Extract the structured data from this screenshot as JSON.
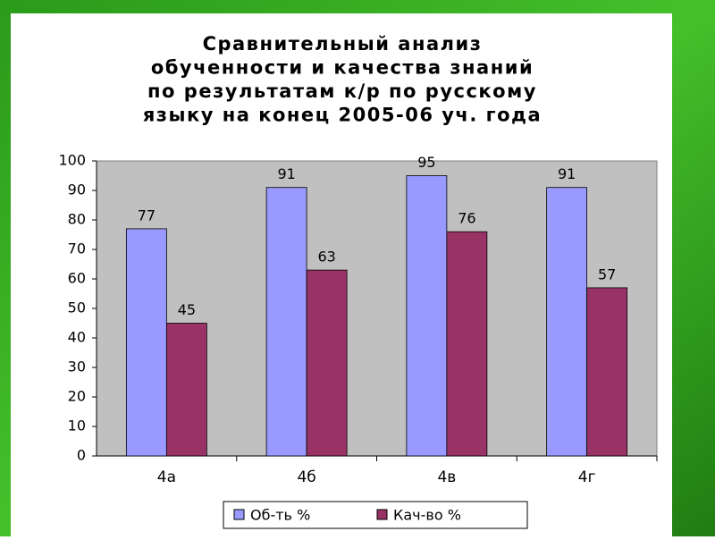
{
  "chart_data": {
    "type": "bar",
    "title": [
      "Сравнительный анализ",
      "обученности и качества знаний",
      "по результатам к/р по русскому",
      "языку на конец 2005-06 уч. года"
    ],
    "categories": [
      "4а",
      "4б",
      "4в",
      "4г"
    ],
    "series": [
      {
        "name": "Об-ть %",
        "color": "#9999ff",
        "values": [
          77,
          91,
          95,
          91
        ]
      },
      {
        "name": "Кач-во %",
        "color": "#993366",
        "values": [
          45,
          63,
          76,
          57
        ]
      }
    ],
    "ylim": [
      0,
      100
    ],
    "yticks": [
      0,
      10,
      20,
      30,
      40,
      50,
      60,
      70,
      80,
      90,
      100
    ],
    "grid": false,
    "legend": "bottom",
    "plot_background": "#c0c0c0"
  }
}
